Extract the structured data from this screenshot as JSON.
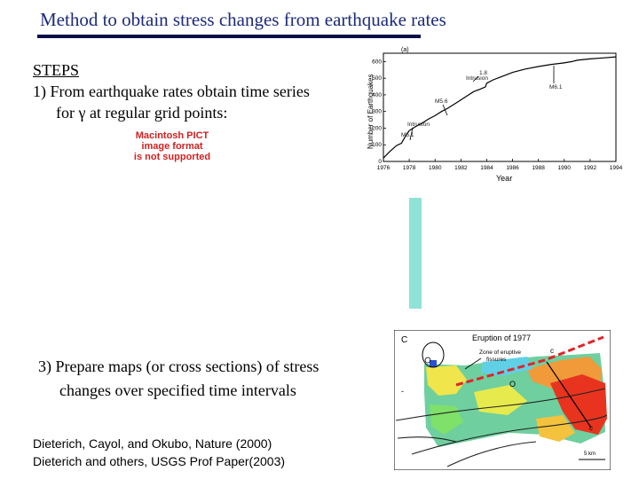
{
  "slide": {
    "title": "Method to obtain stress changes from earthquake rates",
    "steps_heading": "STEPS",
    "step1_line1": "1) From earthquake rates obtain time series",
    "step1_line2": "for γ at regular grid points:",
    "pict_line1": "Macintosh PICT",
    "pict_line2": "image format",
    "pict_line3": "is not supported",
    "step3_line1": "3) Prepare maps (or cross sections) of stress",
    "step3_line2": "changes over specified time intervals",
    "ref1": "Dieterich, Cayol, and Okubo, Nature (2000)",
    "ref2": "Dieterich and others, USGS Prof Paper(2003)"
  },
  "chart_data": {
    "type": "line",
    "panel_label": "(a)",
    "xlabel": "Year",
    "ylabel": "Number of Earthquakes",
    "x_ticks": [
      "1976",
      "1978",
      "1980",
      "1982",
      "1984",
      "1986",
      "1988",
      "1990",
      "1992",
      "1994"
    ],
    "y_ticks": [
      "0",
      "100",
      "200",
      "300",
      "400",
      "500",
      "600"
    ],
    "xlim": [
      1976,
      1994
    ],
    "ylim": [
      0,
      650
    ],
    "series": [
      {
        "values_x": [
          1976,
          1976.5,
          1977,
          1977.4,
          1977.7,
          1978,
          1978.5,
          1979,
          1979.5,
          1980,
          1980.5,
          1981,
          1981.5,
          1982,
          1982.5,
          1983,
          1983.5,
          1983.9,
          1984,
          1984.5,
          1985,
          1985.5,
          1986,
          1986.5,
          1987,
          1988,
          1989,
          1990,
          1990.6,
          1991,
          1992,
          1993,
          1994
        ],
        "values_y": [
          20,
          60,
          95,
          110,
          150,
          185,
          210,
          230,
          255,
          275,
          300,
          320,
          345,
          370,
          395,
          420,
          435,
          448,
          470,
          490,
          505,
          520,
          535,
          545,
          555,
          570,
          583,
          592,
          600,
          608,
          616,
          622,
          628
        ]
      }
    ],
    "annotations": [
      "Intrusion",
      "M5.1",
      "Intrusion",
      "M5.6",
      "1.8",
      "M6.1"
    ]
  },
  "map": {
    "title": "Eruption of 1977",
    "zone_label_1": "Zone of eruptive",
    "zone_label_2": "fissures",
    "corner_label": "C",
    "label_c_right": "c",
    "label_c_bottom": "c",
    "label_o": "O",
    "scale_label": "5 km",
    "dash_label": "-"
  }
}
